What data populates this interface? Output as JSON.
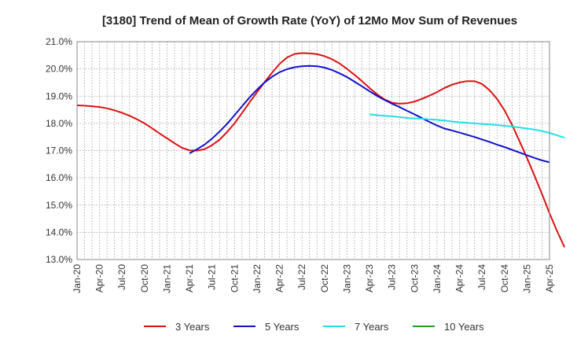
{
  "chart_data": {
    "type": "line",
    "title": "[3180]  Trend of Mean of Growth Rate (YoY) of 12Mo Mov Sum of Revenues",
    "xlabel": "",
    "ylabel": "",
    "ylim": [
      13.0,
      21.0
    ],
    "y_ticks": [
      "13.0%",
      "14.0%",
      "15.0%",
      "16.0%",
      "17.0%",
      "18.0%",
      "19.0%",
      "20.0%",
      "21.0%"
    ],
    "x_ticks": [
      "Jan-20",
      "Apr-20",
      "Jul-20",
      "Oct-20",
      "Jan-21",
      "Apr-21",
      "Jul-21",
      "Oct-21",
      "Jan-22",
      "Apr-22",
      "Jul-22",
      "Oct-22",
      "Jan-23",
      "Apr-23",
      "Jul-23",
      "Oct-23",
      "Jan-24",
      "Apr-24",
      "Jul-24",
      "Oct-24",
      "Jan-25",
      "Apr-25"
    ],
    "grid": true,
    "legend_position": "bottom",
    "series": [
      {
        "name": "3 Years",
        "color": "#dd1111",
        "start_month_index": 0,
        "values": [
          18.66,
          18.65,
          18.63,
          18.6,
          18.55,
          18.48,
          18.39,
          18.28,
          18.15,
          18.0,
          17.82,
          17.63,
          17.45,
          17.27,
          17.1,
          17.01,
          17.0,
          17.05,
          17.2,
          17.4,
          17.68,
          18.0,
          18.38,
          18.77,
          19.15,
          19.51,
          19.86,
          20.18,
          20.42,
          20.55,
          20.58,
          20.57,
          20.54,
          20.47,
          20.36,
          20.2,
          20.0,
          19.78,
          19.55,
          19.3,
          19.07,
          18.88,
          18.76,
          18.72,
          18.74,
          18.8,
          18.9,
          19.02,
          19.15,
          19.3,
          19.42,
          19.5,
          19.55,
          19.55,
          19.45,
          19.22,
          18.9,
          18.48,
          17.95,
          17.35,
          16.73,
          16.08,
          15.4,
          14.7,
          14.05,
          13.45
        ]
      },
      {
        "name": "5 Years",
        "color": "#1111cc",
        "start_month_index": 15,
        "values": [
          16.9,
          17.05,
          17.22,
          17.44,
          17.7,
          17.98,
          18.3,
          18.63,
          18.95,
          19.24,
          19.5,
          19.71,
          19.88,
          19.99,
          20.06,
          20.1,
          20.11,
          20.1,
          20.05,
          19.96,
          19.84,
          19.7,
          19.53,
          19.36,
          19.18,
          19.01,
          18.86,
          18.72,
          18.6,
          18.46,
          18.33,
          18.19,
          18.05,
          17.92,
          17.81,
          17.74,
          17.66,
          17.58,
          17.5,
          17.41,
          17.32,
          17.22,
          17.13,
          17.03,
          16.93,
          16.83,
          16.73,
          16.64,
          16.57
        ]
      },
      {
        "name": "7 Years",
        "color": "#22e0e8",
        "start_month_index": 39,
        "values": [
          18.33,
          18.3,
          18.28,
          18.26,
          18.23,
          18.2,
          18.18,
          18.17,
          18.15,
          18.13,
          18.1,
          18.07,
          18.04,
          18.02,
          18.0,
          17.98,
          17.96,
          17.94,
          17.91,
          17.88,
          17.85,
          17.81,
          17.77,
          17.72,
          17.65,
          17.56,
          17.47
        ]
      },
      {
        "name": "10 Years",
        "color": "#22a022",
        "start_month_index": 0,
        "values": []
      }
    ]
  }
}
